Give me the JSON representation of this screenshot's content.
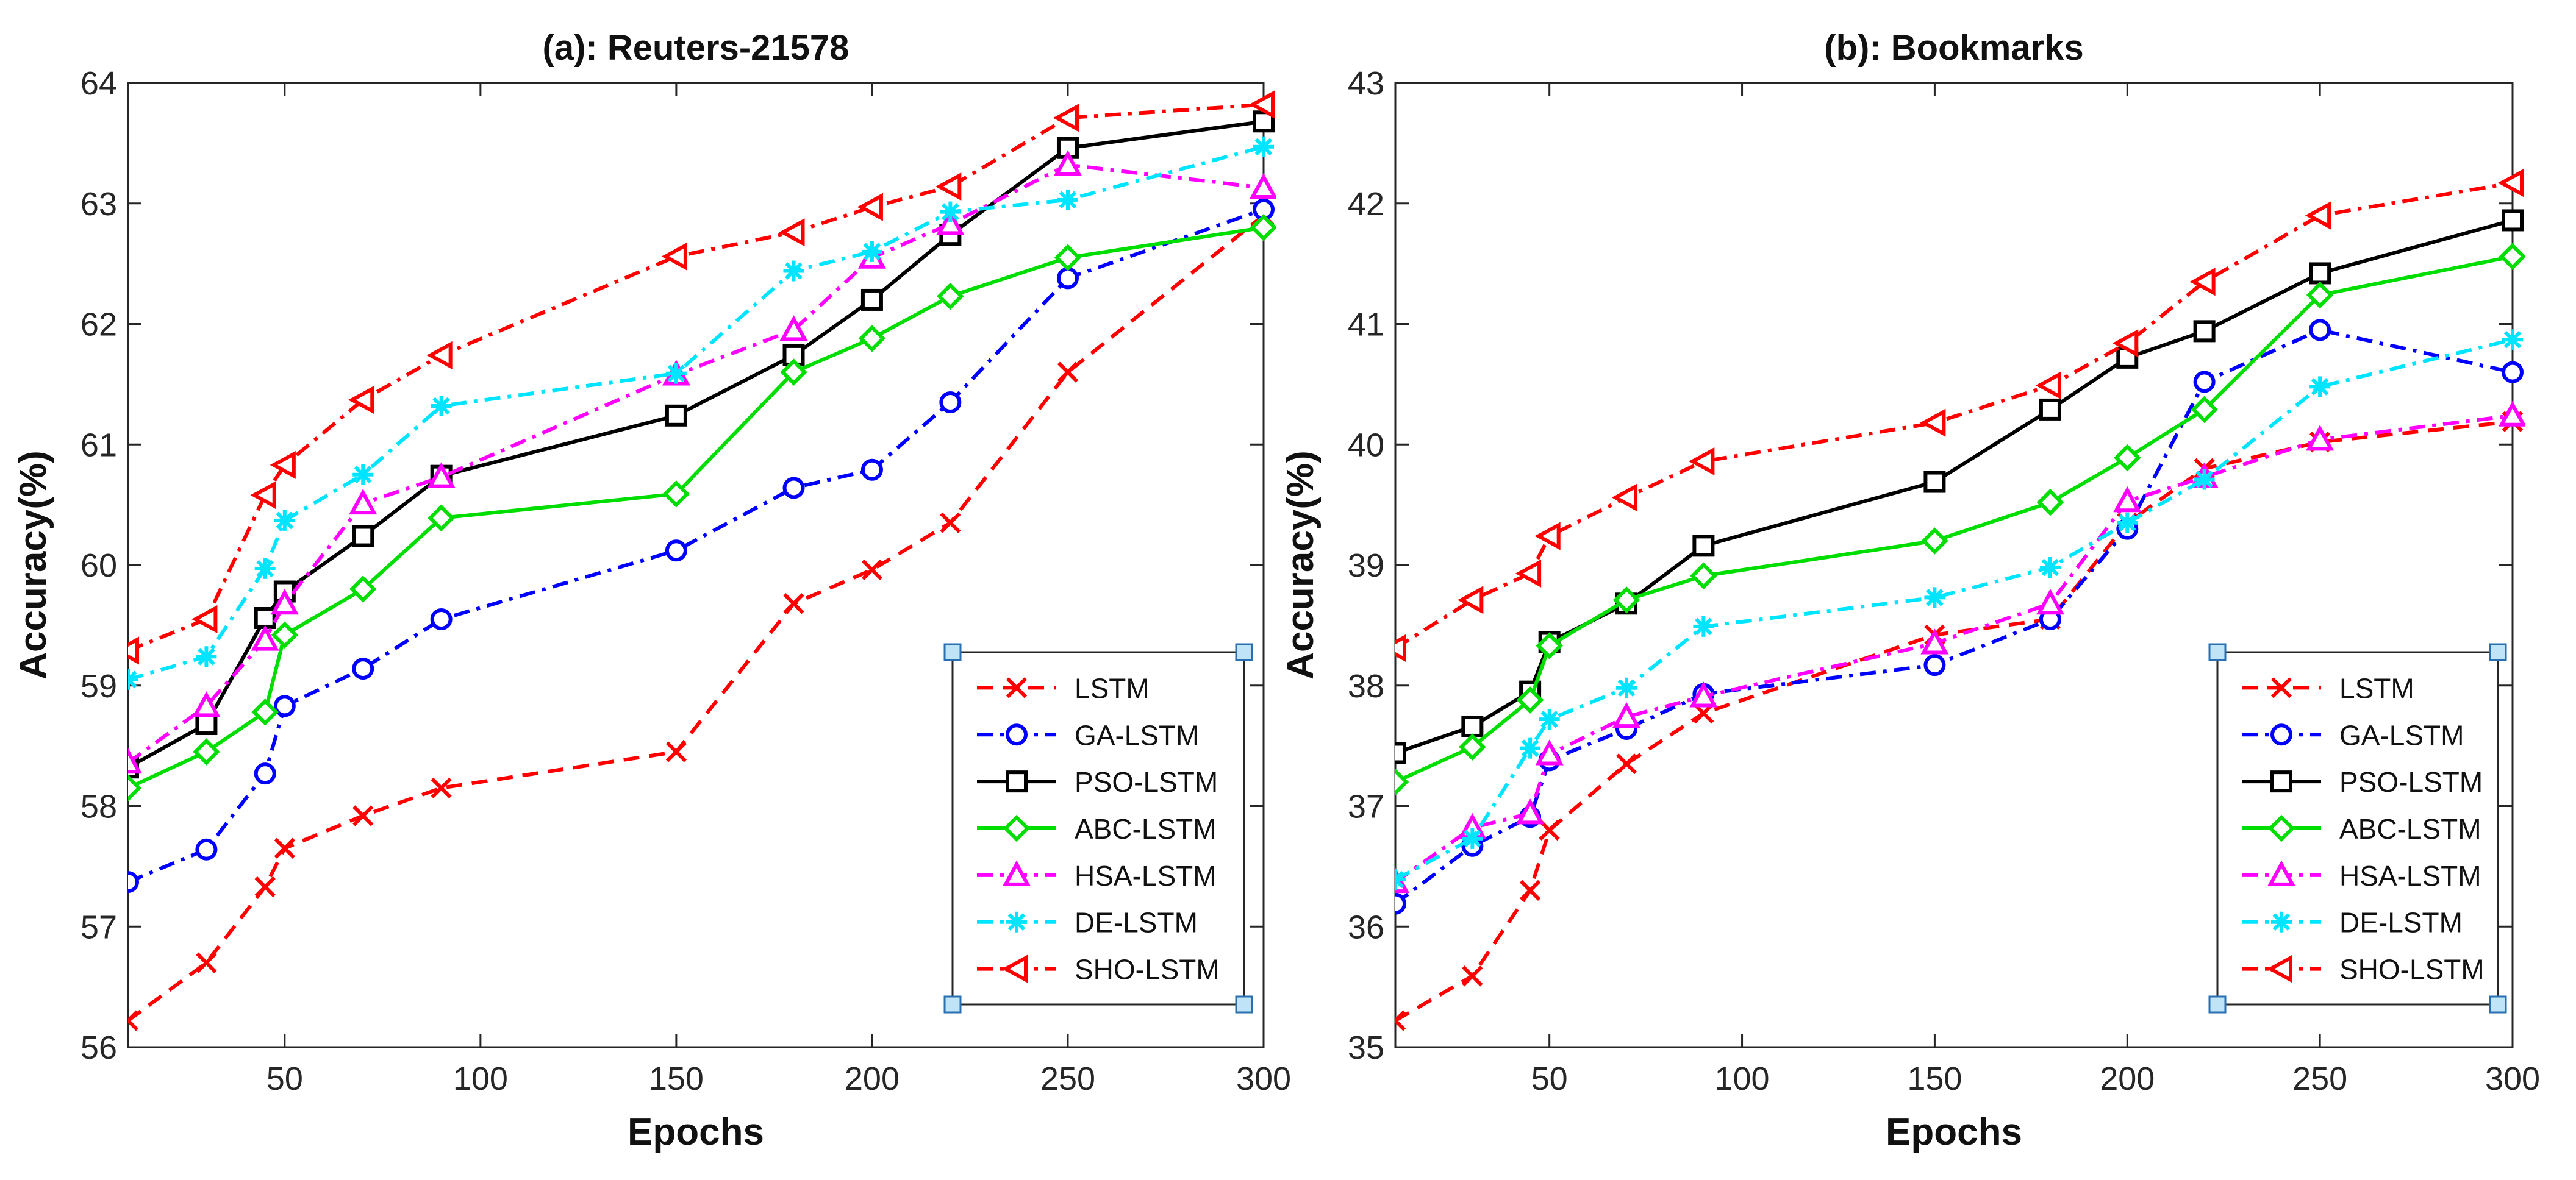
{
  "chart_data": [
    {
      "type": "line",
      "title": "(a): Reuters-21578",
      "xlabel": "Epochs",
      "ylabel": "Accuracy(%)",
      "xlim": [
        10,
        300
      ],
      "ylim": [
        56,
        64
      ],
      "xticks": [
        50,
        100,
        150,
        200,
        250,
        300
      ],
      "yticks": [
        56,
        57,
        58,
        59,
        60,
        61,
        62,
        63,
        64
      ],
      "x": [
        10,
        30,
        45,
        50,
        70,
        90,
        150,
        180,
        200,
        220,
        250,
        300
      ],
      "grid": false,
      "legend_position": "bottom-right",
      "series": [
        {
          "name": "LSTM",
          "color": "#ff0000",
          "dash": "dashed",
          "marker": "x",
          "values": [
            56.22,
            56.7,
            57.33,
            57.65,
            57.92,
            58.15,
            58.45,
            59.68,
            59.96,
            60.35,
            61.6,
            62.9
          ]
        },
        {
          "name": "GA-LSTM",
          "color": "#0000ff",
          "dash": "dashdot",
          "marker": "circle",
          "values": [
            57.37,
            57.64,
            58.27,
            58.83,
            59.14,
            59.55,
            60.12,
            60.64,
            60.79,
            61.35,
            62.38,
            62.95
          ]
        },
        {
          "name": "PSO-LSTM",
          "color": "#000000",
          "dash": "solid",
          "marker": "square",
          "values": [
            58.32,
            58.68,
            59.56,
            59.78,
            60.24,
            60.74,
            61.24,
            61.74,
            62.2,
            62.74,
            63.46,
            63.68
          ]
        },
        {
          "name": "ABC-LSTM",
          "color": "#00dd00",
          "dash": "solid",
          "marker": "diamond",
          "values": [
            58.15,
            58.45,
            58.78,
            59.42,
            59.8,
            60.39,
            60.59,
            61.6,
            61.88,
            62.23,
            62.55,
            62.8
          ]
        },
        {
          "name": "HSA-LSTM",
          "color": "#ff00ff",
          "dash": "dashdot",
          "marker": "triangle-up",
          "values": [
            58.36,
            58.83,
            59.38,
            59.68,
            60.51,
            60.73,
            61.58,
            61.95,
            62.55,
            62.83,
            63.32,
            63.13
          ]
        },
        {
          "name": "DE-LSTM",
          "color": "#00e5ff",
          "dash": "dashdot",
          "marker": "star",
          "values": [
            59.05,
            59.24,
            59.97,
            60.37,
            60.75,
            61.32,
            61.59,
            62.44,
            62.6,
            62.93,
            63.03,
            63.47
          ]
        },
        {
          "name": "SHO-LSTM",
          "color": "#ff0000",
          "dash": "dashdot",
          "marker": "triangle-left",
          "values": [
            59.29,
            59.55,
            60.58,
            60.83,
            61.37,
            61.74,
            62.56,
            62.76,
            62.97,
            63.14,
            63.71,
            63.82
          ]
        }
      ]
    },
    {
      "type": "line",
      "title": "(b): Bookmarks",
      "xlabel": "Epochs",
      "ylabel": "Accuracy(%)",
      "xlim": [
        10,
        300
      ],
      "ylim": [
        35,
        43
      ],
      "xticks": [
        50,
        100,
        150,
        200,
        250,
        300
      ],
      "yticks": [
        35,
        36,
        37,
        38,
        39,
        40,
        41,
        42,
        43
      ],
      "x": [
        10,
        30,
        45,
        50,
        70,
        90,
        150,
        180,
        200,
        220,
        250,
        300
      ],
      "grid": false,
      "legend_position": "bottom-right",
      "series": [
        {
          "name": "LSTM",
          "color": "#ff0000",
          "dash": "dashed",
          "marker": "x",
          "values": [
            35.22,
            35.59,
            36.3,
            36.8,
            37.35,
            37.77,
            38.42,
            38.55,
            39.35,
            39.8,
            40.02,
            40.19
          ]
        },
        {
          "name": "GA-LSTM",
          "color": "#0000ff",
          "dash": "dashdot",
          "marker": "circle",
          "values": [
            36.19,
            36.67,
            36.91,
            37.38,
            37.64,
            37.93,
            38.17,
            38.55,
            39.3,
            40.52,
            40.95,
            40.6
          ]
        },
        {
          "name": "PSO-LSTM",
          "color": "#000000",
          "dash": "solid",
          "marker": "square",
          "values": [
            37.44,
            37.66,
            37.95,
            38.36,
            38.68,
            39.16,
            39.69,
            40.29,
            40.72,
            40.94,
            41.42,
            41.86
          ]
        },
        {
          "name": "ABC-LSTM",
          "color": "#00dd00",
          "dash": "solid",
          "marker": "diamond",
          "values": [
            37.2,
            37.49,
            37.88,
            38.33,
            38.71,
            38.91,
            39.2,
            39.52,
            39.89,
            40.29,
            41.24,
            41.56
          ]
        },
        {
          "name": "HSA-LSTM",
          "color": "#ff00ff",
          "dash": "dashdot",
          "marker": "triangle-up",
          "values": [
            36.37,
            36.82,
            36.94,
            37.43,
            37.74,
            37.91,
            38.35,
            38.68,
            39.53,
            39.73,
            40.04,
            40.24
          ]
        },
        {
          "name": "DE-LSTM",
          "color": "#00e5ff",
          "dash": "dashdot",
          "marker": "star",
          "values": [
            36.39,
            36.73,
            37.48,
            37.72,
            37.98,
            38.49,
            38.73,
            38.98,
            39.35,
            39.71,
            40.48,
            40.87
          ]
        },
        {
          "name": "SHO-LSTM",
          "color": "#ff0000",
          "dash": "dashdot",
          "marker": "triangle-left",
          "values": [
            38.31,
            38.71,
            38.93,
            39.24,
            39.56,
            39.86,
            40.18,
            40.49,
            40.84,
            41.35,
            41.9,
            42.17
          ]
        }
      ]
    }
  ]
}
